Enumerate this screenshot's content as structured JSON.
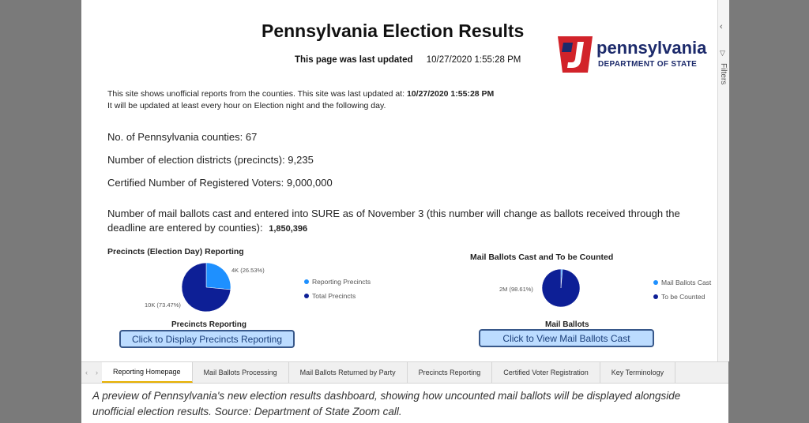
{
  "header": {
    "title": "Pennsylvania Election Results",
    "last_updated_label": "This page was last updated",
    "last_updated_value": "10/27/2020 1:55:28 PM"
  },
  "logo": {
    "name": "pennsylvania",
    "dept": "DEPARTMENT OF STATE",
    "colors": {
      "red": "#d2232a",
      "blue": "#1c2a6b"
    }
  },
  "intro": {
    "line1": "This site shows unofficial reports from the counties. This site was last updated at:",
    "line1_value": "10/27/2020 1:55:28 PM",
    "line2": "It will be updated at least every hour on Election night and the following day."
  },
  "stats": [
    "No. of Pennsylvania counties: 67",
    "Number of election districts (precincts): 9,235",
    "Certified Number of Registered Voters: 9,000,000"
  ],
  "mail": {
    "text": "Number of mail ballots cast and entered into SURE as of November 3 (this number will change as ballots received through the deadline are entered by counties):",
    "value": "1,850,396"
  },
  "precincts_chart": {
    "title": "Precincts (Election Day) Reporting",
    "subtitle": "Precincts Reporting",
    "button": "Click to Display Precincts Reporting",
    "legend": [
      "Reporting Precincts",
      "Total Precincts"
    ],
    "labels": [
      "4K (26.53%)",
      "10K (73.47%)"
    ],
    "colors": [
      "#1e90ff",
      "#0d1f96"
    ]
  },
  "mail_chart": {
    "title": "Mail Ballots Cast and To be Counted",
    "subtitle": "Mail Ballots",
    "button": "Click to View Mail Ballots Cast",
    "legend": [
      "Mail Ballots Cast",
      "To be Counted"
    ],
    "labels": [
      "2M (98.61%)"
    ],
    "colors": [
      "#1e90ff",
      "#0d1f96"
    ]
  },
  "chart_data": [
    {
      "type": "pie",
      "title": "Precincts (Election Day) Reporting",
      "categories": [
        "Reporting Precincts",
        "Total Precincts"
      ],
      "values": [
        26.53,
        73.47
      ],
      "data_labels": [
        "4K (26.53%)",
        "10K (73.47%)"
      ],
      "legend": "right"
    },
    {
      "type": "pie",
      "title": "Mail Ballots Cast and To be Counted",
      "categories": [
        "Mail Ballots Cast",
        "To be Counted"
      ],
      "values": [
        1.39,
        98.61
      ],
      "data_labels": [
        "2M (98.61%)"
      ],
      "legend": "right"
    }
  ],
  "tabs": [
    "Reporting Homepage",
    "Mail Ballots Processing",
    "Mail Ballots Returned by Party",
    "Precincts Reporting",
    "Certified Voter Registration",
    "Key Terminology"
  ],
  "right_pane": {
    "filters_label": "Filters",
    "collapse": "‹",
    "filter_icon": "▽"
  },
  "caption": "A preview of Pennsylvania's new election results dashboard, showing how uncounted mail ballots will be displayed alongside unofficial election results. Source: Department of State Zoom call."
}
